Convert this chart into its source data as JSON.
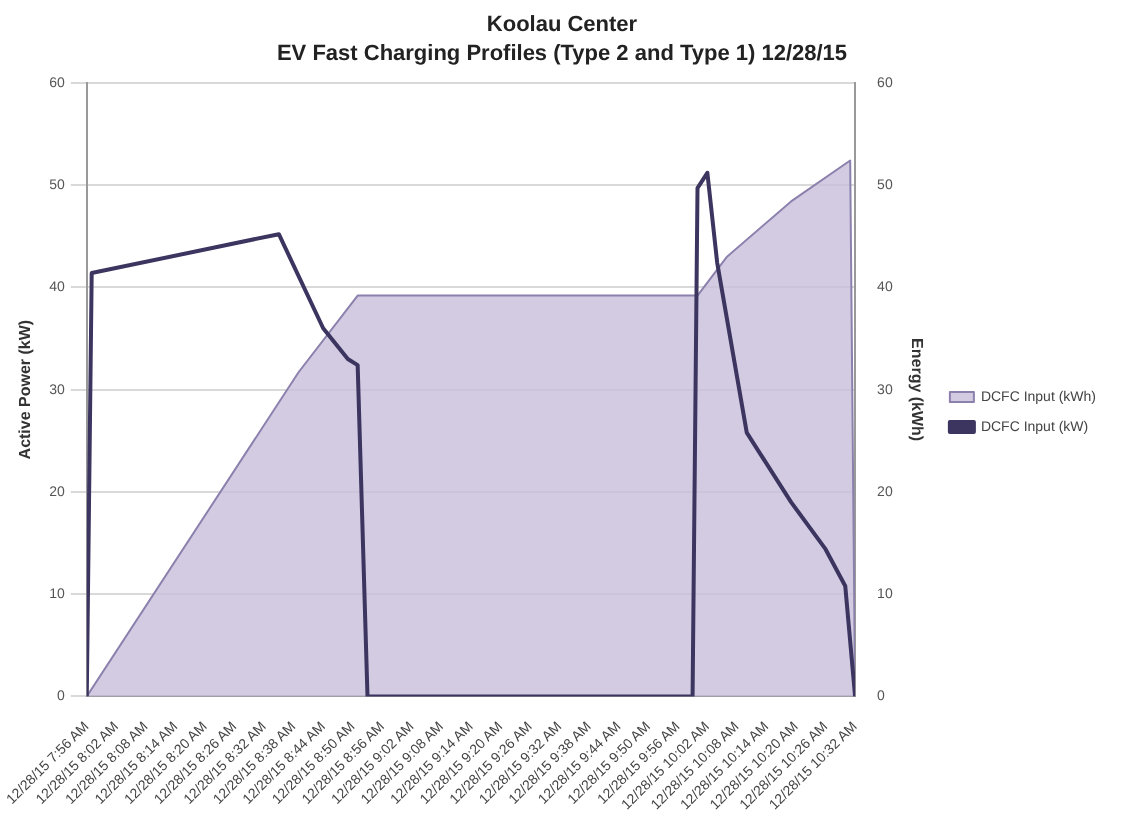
{
  "chart_data": {
    "type": "line",
    "title": "Koolau Center",
    "subtitle": "EV Fast Charging Profiles (Type 2 and Type 1) 12/28/15",
    "ylabel": "Active Power (kW)",
    "y2label": "Energy (kWh)",
    "series": [
      {
        "name": "DCFC Input (kWh)",
        "type": "area",
        "color": "#c8bedb",
        "x": [
          "--12-28T07:56",
          "--12-28T08:39",
          "--12-28T08:51",
          "--12-28T10:00",
          "--12-28T10:06",
          "--12-28T10:19",
          "--12-28T10:31",
          "--12-28T10:32"
        ],
        "values": [
          0,
          31.7,
          39.2,
          39.2,
          43,
          48.4,
          52.4,
          0
        ]
      },
      {
        "name": "DCFC Input (kW)",
        "color": "#3b3560",
        "x": [
          "--12-28T07:56",
          "--12-28T07:57",
          "--12-28T08:35",
          "--12-28T08:44",
          "--12-28T08:49",
          "--12-28T08:51",
          "--12-28T08:53",
          "--12-28T09:59",
          "--12-28T10:00",
          "--12-28T10:02",
          "--12-28T10:04",
          "--12-28T10:10",
          "--12-28T10:19",
          "--12-28T10:26",
          "--12-28T10:30",
          "--12-28T10:32"
        ],
        "values": [
          0,
          41.4,
          45.2,
          36,
          33,
          32.4,
          0,
          0,
          49.7,
          51.2,
          42.4,
          25.8,
          19,
          14.4,
          10.8,
          0
        ]
      }
    ],
    "xlim": [
      "--12-28T07:56",
      "--12-28T10:32"
    ],
    "xticks": [
      {
        "value": "--12-28T07:56",
        "label": "12/28/15 7:56 AM"
      },
      {
        "value": "--12-28T08:02",
        "label": "12/28/15 8:02 AM"
      },
      {
        "value": "--12-28T08:08",
        "label": "12/28/15 8:08 AM"
      },
      {
        "value": "--12-28T08:14",
        "label": "12/28/15 8:14 AM"
      },
      {
        "value": "--12-28T08:20",
        "label": "12/28/15 8:20 AM"
      },
      {
        "value": "--12-28T08:26",
        "label": "12/28/15 8:26 AM"
      },
      {
        "value": "--12-28T08:32",
        "label": "12/28/15 8:32 AM"
      },
      {
        "value": "--12-28T08:38",
        "label": "12/28/15 8:38 AM"
      },
      {
        "value": "--12-28T08:44",
        "label": "12/28/15 8:44 AM"
      },
      {
        "value": "--12-28T08:50",
        "label": "12/28/15 8:50 AM"
      },
      {
        "value": "--12-28T08:56",
        "label": "12/28/15 8:56 AM"
      },
      {
        "value": "--12-28T09:02",
        "label": "12/28/15 9:02 AM"
      },
      {
        "value": "--12-28T09:08",
        "label": "12/28/15 9:08 AM"
      },
      {
        "value": "--12-28T09:14",
        "label": "12/28/15 9:14 AM"
      },
      {
        "value": "--12-28T09:20",
        "label": "12/28/15 9:20 AM"
      },
      {
        "value": "--12-28T09:26",
        "label": "12/28/15 9:26 AM"
      },
      {
        "value": "--12-28T09:32",
        "label": "12/28/15 9:32 AM"
      },
      {
        "value": "--12-28T09:38",
        "label": "12/28/15 9:38 AM"
      },
      {
        "value": "--12-28T09:44",
        "label": "12/28/15 9:44 AM"
      },
      {
        "value": "--12-28T09:50",
        "label": "12/28/15 9:50 AM"
      },
      {
        "value": "--12-28T09:56",
        "label": "12/28/15 9:56 AM"
      },
      {
        "value": "--12-28T10:02",
        "label": "12/28/15 10:02 AM"
      },
      {
        "value": "--12-28T10:08",
        "label": "12/28/15 10:08 AM"
      },
      {
        "value": "--12-28T10:14",
        "label": "12/28/15 10:14 AM"
      },
      {
        "value": "--12-28T10:20",
        "label": "12/28/15 10:20 AM"
      },
      {
        "value": "--12-28T10:26",
        "label": "12/28/15 10:26 AM"
      },
      {
        "value": "--12-28T10:32",
        "label": "12/28/15 10:32 AM"
      }
    ],
    "ylim": [
      0,
      60
    ],
    "yticks": [
      0,
      10,
      20,
      30,
      40,
      50,
      60
    ],
    "y2lim": [
      0,
      60
    ],
    "y2ticks": [
      0,
      10,
      20,
      30,
      40,
      50,
      60
    ],
    "grid": "y",
    "legend": "right",
    "marker": "none",
    "line_style": "solid"
  }
}
